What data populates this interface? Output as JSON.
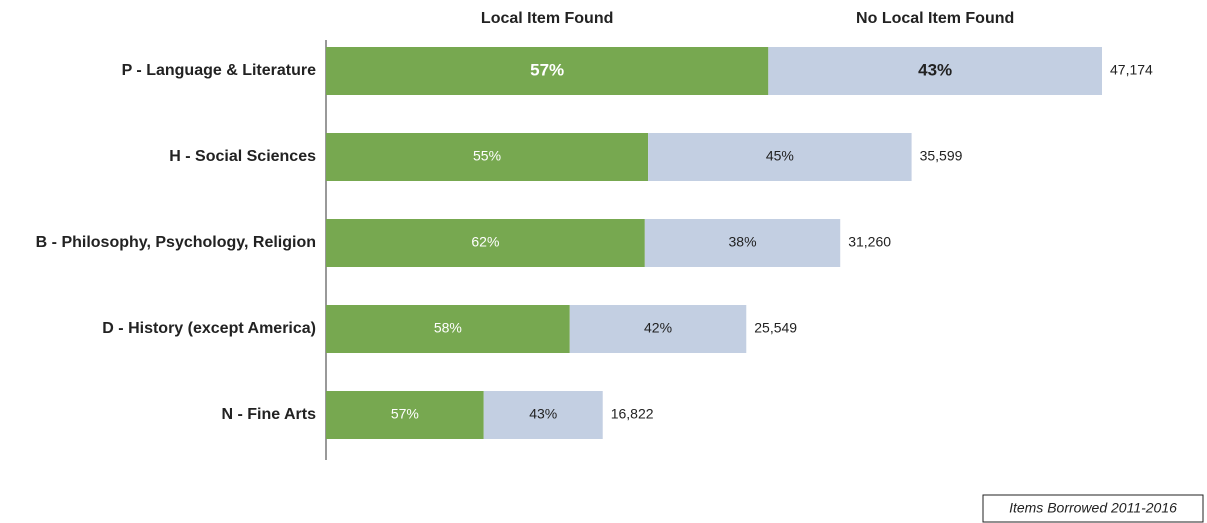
{
  "chart_data": {
    "type": "stacked-bar",
    "orientation": "horizontal",
    "categories": [
      "P - Language & Literature",
      "H - Social Sciences",
      "B - Philosophy, Psychology, Religion",
      "D - History (except America)",
      "N - Fine Arts"
    ],
    "series": [
      {
        "name": "Local Item Found",
        "color": "#77a850",
        "values": [
          57,
          55,
          62,
          58,
          57
        ],
        "value_labels": [
          "57%",
          "55%",
          "62%",
          "58%",
          "57%"
        ]
      },
      {
        "name": "No Local Item Found",
        "color": "#c3cfe2",
        "values": [
          43,
          45,
          38,
          42,
          43
        ],
        "value_labels": [
          "43%",
          "45%",
          "38%",
          "42%",
          "43%"
        ]
      }
    ],
    "totals": {
      "values": [
        47174,
        35599,
        31260,
        25549,
        16822
      ],
      "value_labels": [
        "47,174",
        "35,599",
        "31,260",
        "25,549",
        "16,822"
      ]
    },
    "note": "Items Borrowed 2011-2016"
  }
}
